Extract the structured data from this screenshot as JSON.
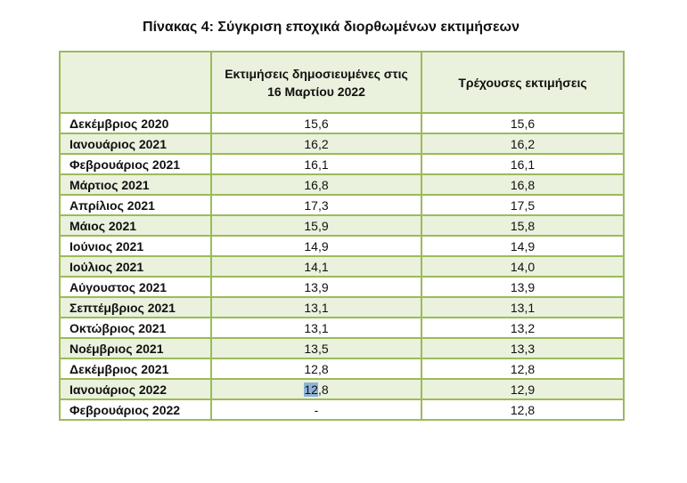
{
  "title": "Πίνακας 4: Σύγκριση εποχικά διορθωμένων εκτιμήσεων",
  "headers": [
    "",
    "Εκτιμήσεις δημοσιευμένες στις 16 Μαρτίου 2022",
    "Τρέχουσες εκτιμήσεις"
  ],
  "rows": [
    {
      "month": "Δεκέμβριος 2020",
      "published": "15,6",
      "current": "15,6"
    },
    {
      "month": "Ιανουάριος 2021",
      "published": "16,2",
      "current": "16,2"
    },
    {
      "month": "Φεβρουάριος 2021",
      "published": "16,1",
      "current": "16,1"
    },
    {
      "month": "Μάρτιος 2021",
      "published": "16,8",
      "current": "16,8"
    },
    {
      "month": "Απρίλιος 2021",
      "published": "17,3",
      "current": "17,5"
    },
    {
      "month": "Μάιος 2021",
      "published": "15,9",
      "current": "15,8"
    },
    {
      "month": "Ιούνιος 2021",
      "published": "14,9",
      "current": "14,9"
    },
    {
      "month": "Ιούλιος 2021",
      "published": "14,1",
      "current": "14,0"
    },
    {
      "month": "Αύγουστος 2021",
      "published": "13,9",
      "current": "13,9"
    },
    {
      "month": "Σεπτέμβριος 2021",
      "published": "13,1",
      "current": "13,1"
    },
    {
      "month": "Οκτώβριος 2021",
      "published": "13,1",
      "current": "13,2"
    },
    {
      "month": "Νοέμβριος 2021",
      "published": "13,5",
      "current": "13,3"
    },
    {
      "month": "Δεκέμβριος 2021",
      "published": "12,8",
      "current": "12,8"
    },
    {
      "month": "Ιανουάριος 2022",
      "published": "12,8",
      "current": "12,9"
    },
    {
      "month": "Φεβρουάριος 2022",
      "published": "-",
      "current": "12,8"
    }
  ],
  "colors": {
    "border": "#9bbb59",
    "shade": "#eaf1dd",
    "selection": "#8eb3d8"
  }
}
